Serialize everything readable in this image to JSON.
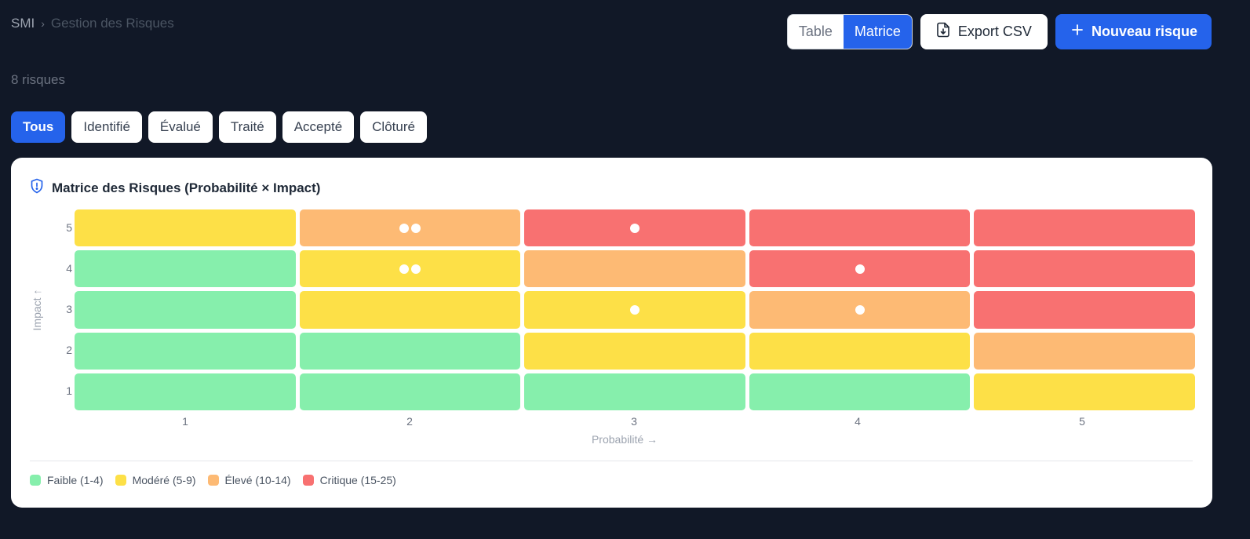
{
  "breadcrumb": {
    "root": "SMI",
    "separator": "›",
    "current": "Gestion des Risques"
  },
  "view_toggle": {
    "table_label": "Table",
    "matrix_label": "Matrice",
    "active": "Matrice"
  },
  "export_button": {
    "label": "Export CSV",
    "icon": "file-download-icon"
  },
  "new_button": {
    "label": "Nouveau risque",
    "icon": "plus-icon"
  },
  "count_text": "8 risques",
  "filters": [
    {
      "label": "Tous",
      "active": true
    },
    {
      "label": "Identifié",
      "active": false
    },
    {
      "label": "Évalué",
      "active": false
    },
    {
      "label": "Traité",
      "active": false
    },
    {
      "label": "Accepté",
      "active": false
    },
    {
      "label": "Clôturé",
      "active": false
    }
  ],
  "matrix": {
    "title": "Matrice des Risques (Probabilité × Impact)",
    "title_icon": "shield-alert-icon",
    "y_label": "Impact ↑",
    "x_label": "Probabilité →",
    "impact_levels": [
      "5",
      "4",
      "3",
      "2",
      "1"
    ],
    "probability_levels": [
      "1",
      "2",
      "3",
      "4",
      "5"
    ],
    "rows": [
      {
        "impact": 5,
        "cells": [
          {
            "level": "modere",
            "risks": 0
          },
          {
            "level": "eleve",
            "risks": 2
          },
          {
            "level": "critique",
            "risks": 1
          },
          {
            "level": "critique",
            "risks": 0
          },
          {
            "level": "critique",
            "risks": 0
          }
        ]
      },
      {
        "impact": 4,
        "cells": [
          {
            "level": "faible",
            "risks": 0
          },
          {
            "level": "modere",
            "risks": 2
          },
          {
            "level": "eleve",
            "risks": 0
          },
          {
            "level": "critique",
            "risks": 1
          },
          {
            "level": "critique",
            "risks": 0
          }
        ]
      },
      {
        "impact": 3,
        "cells": [
          {
            "level": "faible",
            "risks": 0
          },
          {
            "level": "modere",
            "risks": 0
          },
          {
            "level": "modere",
            "risks": 1
          },
          {
            "level": "eleve",
            "risks": 1
          },
          {
            "level": "critique",
            "risks": 0
          }
        ]
      },
      {
        "impact": 2,
        "cells": [
          {
            "level": "faible",
            "risks": 0
          },
          {
            "level": "faible",
            "risks": 0
          },
          {
            "level": "modere",
            "risks": 0
          },
          {
            "level": "modere",
            "risks": 0
          },
          {
            "level": "eleve",
            "risks": 0
          }
        ]
      },
      {
        "impact": 1,
        "cells": [
          {
            "level": "faible",
            "risks": 0
          },
          {
            "level": "faible",
            "risks": 0
          },
          {
            "level": "faible",
            "risks": 0
          },
          {
            "level": "faible",
            "risks": 0
          },
          {
            "level": "modere",
            "risks": 0
          }
        ]
      }
    ],
    "colors": {
      "faible": "#86efac",
      "modere": "#fde047",
      "eleve": "#fdba74",
      "critique": "#f87171"
    }
  },
  "legend": [
    {
      "key": "faible",
      "label": "Faible (1-4)",
      "color": "#86efac"
    },
    {
      "key": "modere",
      "label": "Modéré (5-9)",
      "color": "#fde047"
    },
    {
      "key": "eleve",
      "label": "Élevé (10-14)",
      "color": "#fdba74"
    },
    {
      "key": "critique",
      "label": "Critique (15-25)",
      "color": "#f87171"
    }
  ],
  "colors": {
    "background": "#111827",
    "accent": "#2563eb"
  }
}
